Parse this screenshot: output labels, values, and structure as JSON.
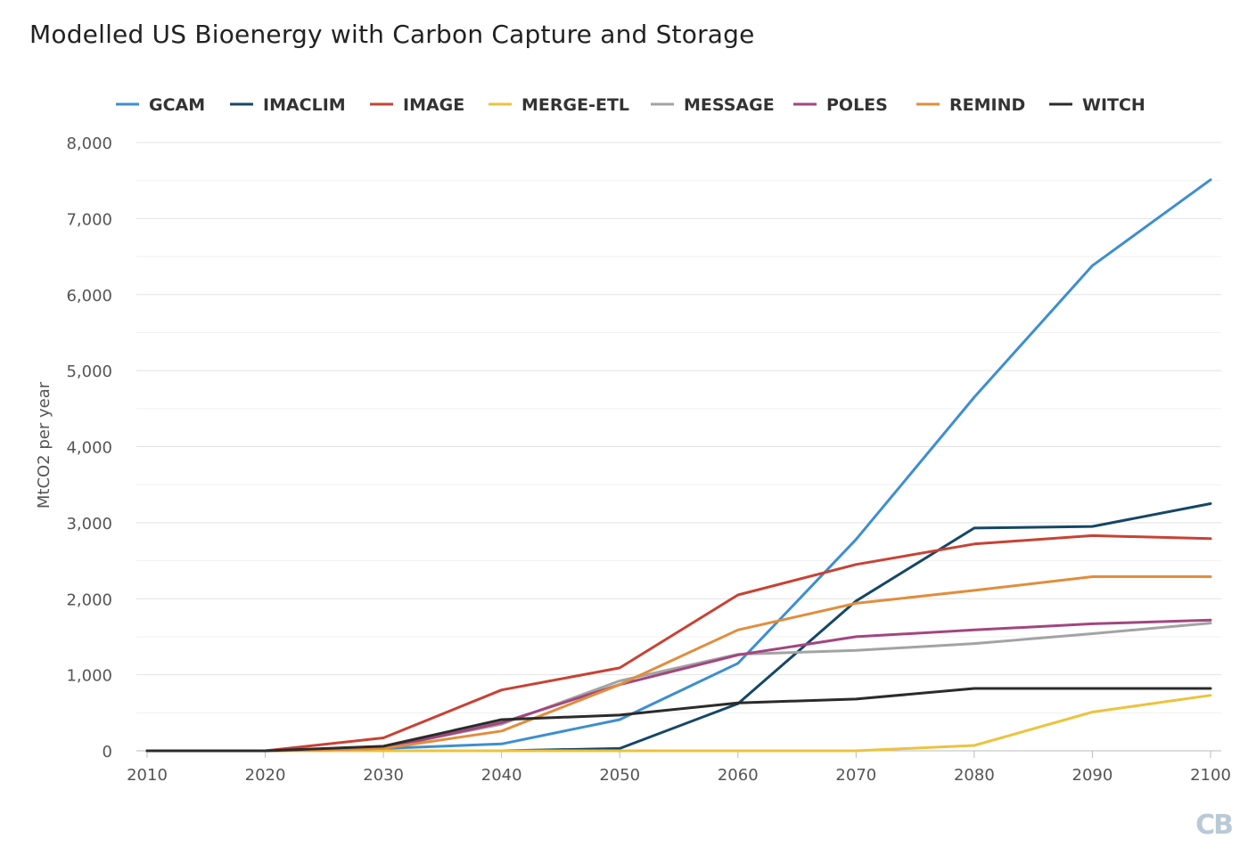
{
  "chart_data": {
    "type": "line",
    "title": "Modelled US Bioenergy with Carbon Capture and Storage",
    "ylabel": "MtCO2 per year",
    "xlabel": "",
    "x": [
      2010,
      2020,
      2030,
      2040,
      2050,
      2060,
      2070,
      2080,
      2090,
      2100
    ],
    "x_tick_labels": [
      "2010",
      "2020",
      "2030",
      "2040",
      "2050",
      "2060",
      "2070",
      "2080",
      "2090",
      "2100"
    ],
    "ylim": [
      0,
      8000
    ],
    "y_ticks": [
      0,
      1000,
      2000,
      3000,
      4000,
      5000,
      6000,
      7000,
      8000
    ],
    "y_tick_labels": [
      "0",
      "1,000",
      "2,000",
      "3,000",
      "4,000",
      "5,000",
      "6,000",
      "7,000",
      "8,000"
    ],
    "grid": true,
    "legend_position": "top",
    "series": [
      {
        "name": "GCAM",
        "color": "#3d8fce",
        "values": [
          0,
          0,
          30,
          90,
          410,
          1150,
          2780,
          4650,
          6380,
          7510
        ]
      },
      {
        "name": "IMACLIM",
        "color": "#154766",
        "values": [
          0,
          0,
          0,
          0,
          30,
          620,
          1970,
          2930,
          2950,
          3250
        ]
      },
      {
        "name": "IMAGE",
        "color": "#c84234",
        "values": [
          0,
          0,
          170,
          800,
          1090,
          2050,
          2450,
          2720,
          2830,
          2790
        ]
      },
      {
        "name": "MERGE-ETL",
        "color": "#ecc33d",
        "values": [
          0,
          0,
          0,
          0,
          0,
          0,
          0,
          70,
          510,
          730
        ]
      },
      {
        "name": "MESSAGE",
        "color": "#a3a3a3",
        "values": [
          0,
          0,
          40,
          350,
          920,
          1270,
          1320,
          1410,
          1540,
          1680
        ]
      },
      {
        "name": "POLES",
        "color": "#a2467f",
        "values": [
          0,
          0,
          30,
          370,
          870,
          1260,
          1500,
          1590,
          1670,
          1720
        ]
      },
      {
        "name": "REMIND",
        "color": "#e18d3c",
        "values": [
          0,
          0,
          30,
          260,
          870,
          1590,
          1940,
          2110,
          2290,
          2290
        ]
      },
      {
        "name": "WITCH",
        "color": "#2b2b2b",
        "values": [
          0,
          0,
          60,
          410,
          470,
          630,
          680,
          820,
          820,
          820
        ]
      }
    ]
  },
  "logo_text": "CB"
}
